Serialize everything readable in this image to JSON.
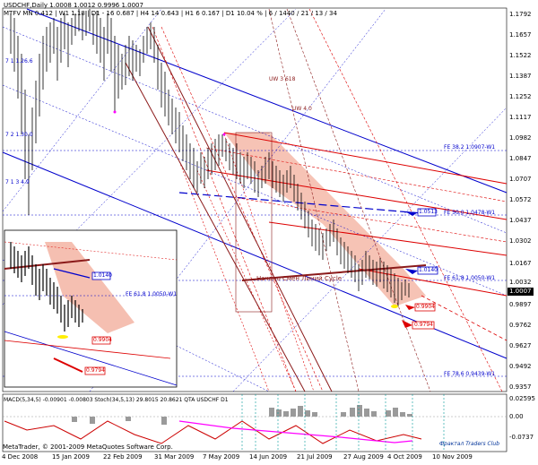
{
  "header": {
    "symbol_line": "USDCHF,Daily 1.0008 1.0012 0.9996 1.0007",
    "mtf_line": "MTFV MN  0.412 | W1  1.18  | D1  - 16  0.687 | H4  14  0.643 | H1  6  0.167  | D1  10.04 %  | 6 / 1440 / 21 / 13 / 34"
  },
  "price_axis": {
    "ticks": [
      "1.1792",
      "1.1657",
      "1.1522",
      "1.1387",
      "1.1252",
      "1.1117",
      "1.0982",
      "1.0847",
      "1.0707",
      "1.0572",
      "1.0437",
      "1.0302",
      "1.0167",
      "1.0032",
      "0.9897",
      "0.9762",
      "0.9627",
      "0.9492",
      "0.9357"
    ],
    "current_price": "1.0007"
  },
  "date_axis": [
    "4 Dec 2008",
    "15 Jan 2009",
    "22 Feb 2009",
    "31 Mar 2009",
    "7 May 2009",
    "14 Jun 2009",
    "21 Jul 2009",
    "27 Aug 2009",
    "4 Oct 2009",
    "10 Nov 2009"
  ],
  "labels": {
    "fe382": "FE 38.2 1.0907-W1",
    "fe500": "FE 50.0 1.0478-W1",
    "fe618": "FE 61.8 1.0050-W1",
    "fe786": "FE 78.6 0.9439-W1",
    "box_1_0513": "1.0513",
    "box_1_0140": "1.0140",
    "box_0_9904": "0.9904",
    "box_0_9794": "0.9794",
    "inset_1_0140": "1.0140",
    "inset_fe618": "FE 61.8 1.0050-W1",
    "inset_0_9904": "0.9904",
    "inset_0_9794": "0.9794",
    "cycle": "Начало Смен Линий Cycle",
    "dia1": "7 1 1.26.6",
    "dia2": "7 2 1.30.0",
    "dia3": "7 1 3 4.9",
    "uw1": "UW 3 618",
    "uw2": "UW 4 0"
  },
  "indicator": {
    "title": "MACD(5,34,5) -0.00901 -0.00803  Stoch(34,5,13) 29.8015 20.8621  QTA USDCHF D1",
    "ticks": [
      "0.02595",
      "0.00",
      "-0.0737"
    ]
  },
  "footer": {
    "copyright": "MetaTrader, © 2001-2009 MetaQuotes Software Corp.",
    "club": "Фрактал Traders Club"
  },
  "colors": {
    "pink_zone": "#f4b8a8",
    "blue_line": "#0000cc",
    "red_line": "#dd0000",
    "brown_line": "#8b1a1a",
    "macd": "#9a9a9a",
    "stoch_magenta": "#ff00ff",
    "stoch_red": "#cc0000"
  }
}
